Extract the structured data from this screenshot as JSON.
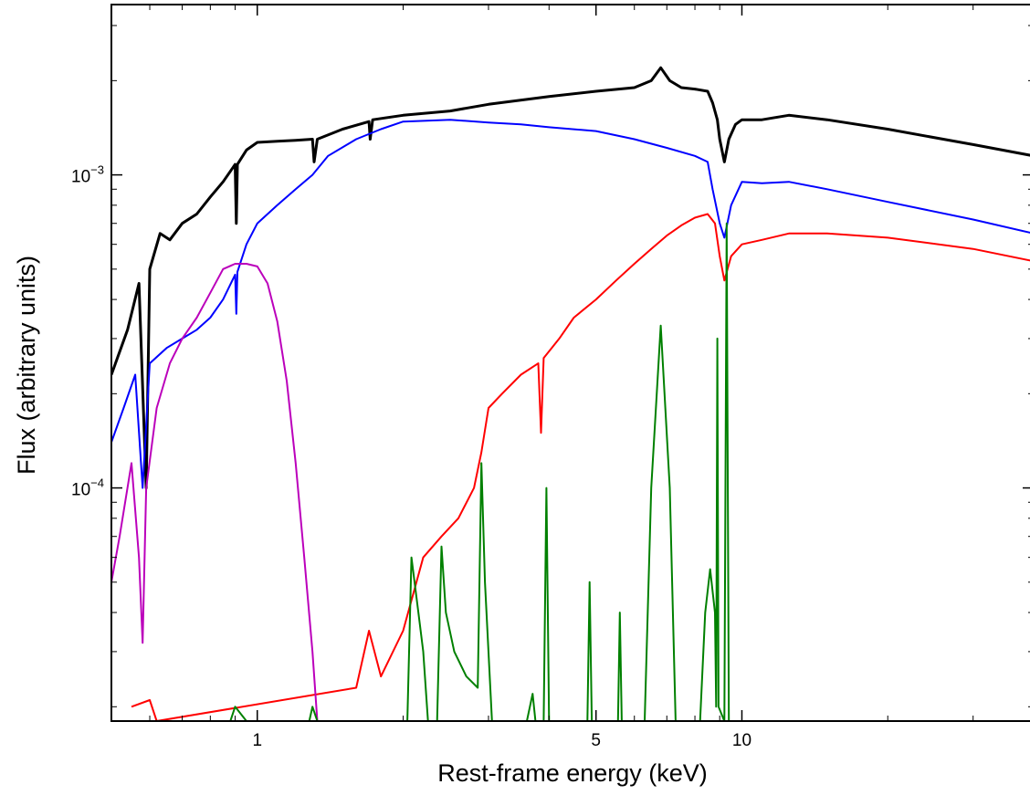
{
  "chart_data": {
    "type": "line",
    "title": "",
    "xlabel": "Rest-frame energy (keV)",
    "ylabel": "Flux (arbitrary units)",
    "xscale": "log",
    "yscale": "log",
    "xlim": [
      0.5,
      40
    ],
    "ylim": [
      1.8e-05,
      0.0035
    ],
    "grid": false,
    "legend": "none",
    "x_ticks": [
      {
        "value": 1,
        "label": "1"
      },
      {
        "value": 5,
        "label": "5"
      },
      {
        "value": 10,
        "label": "10"
      }
    ],
    "y_ticks": [
      {
        "value": 0.001,
        "base": "10",
        "exp": "−3"
      },
      {
        "value": 0.0001,
        "base": "10",
        "exp": "−4"
      }
    ],
    "series": [
      {
        "color": "#000000",
        "line_width": 3,
        "points": [
          [
            0.5,
            0.00023
          ],
          [
            0.54,
            0.00032
          ],
          [
            0.57,
            0.00045
          ],
          [
            0.59,
            0.0001
          ],
          [
            0.6,
            0.0005
          ],
          [
            0.63,
            0.00065
          ],
          [
            0.66,
            0.00062
          ],
          [
            0.7,
            0.0007
          ],
          [
            0.75,
            0.00075
          ],
          [
            0.8,
            0.00085
          ],
          [
            0.85,
            0.00095
          ],
          [
            0.9,
            0.00108
          ],
          [
            0.905,
            0.0007
          ],
          [
            0.91,
            0.00108
          ],
          [
            0.95,
            0.0012
          ],
          [
            1.0,
            0.00127
          ],
          [
            1.1,
            0.00128
          ],
          [
            1.2,
            0.00129
          ],
          [
            1.3,
            0.0013
          ],
          [
            1.31,
            0.0011
          ],
          [
            1.33,
            0.0013
          ],
          [
            1.5,
            0.0014
          ],
          [
            1.7,
            0.00148
          ],
          [
            1.71,
            0.0013
          ],
          [
            1.73,
            0.0015
          ],
          [
            2.0,
            0.00155
          ],
          [
            2.5,
            0.0016
          ],
          [
            3.0,
            0.00168
          ],
          [
            4.0,
            0.00178
          ],
          [
            5.0,
            0.00185
          ],
          [
            6.0,
            0.0019
          ],
          [
            6.5,
            0.002
          ],
          [
            6.8,
            0.0022
          ],
          [
            7.1,
            0.002
          ],
          [
            7.5,
            0.0019
          ],
          [
            8.0,
            0.00188
          ],
          [
            8.5,
            0.00185
          ],
          [
            8.7,
            0.0017
          ],
          [
            8.9,
            0.0015
          ],
          [
            9.0,
            0.0013
          ],
          [
            9.2,
            0.0011
          ],
          [
            9.4,
            0.0013
          ],
          [
            9.7,
            0.00145
          ],
          [
            10.0,
            0.0015
          ],
          [
            11.0,
            0.0015
          ],
          [
            12.5,
            0.00155
          ],
          [
            15.0,
            0.0015
          ],
          [
            20.0,
            0.0014
          ],
          [
            30.0,
            0.00125
          ],
          [
            40.0,
            0.00115
          ]
        ]
      },
      {
        "color": "#0000ff",
        "line_width": 2,
        "points": [
          [
            0.5,
            0.00014
          ],
          [
            0.53,
            0.00018
          ],
          [
            0.56,
            0.00023
          ],
          [
            0.58,
            0.0001
          ],
          [
            0.6,
            0.00025
          ],
          [
            0.65,
            0.00028
          ],
          [
            0.7,
            0.0003
          ],
          [
            0.75,
            0.00032
          ],
          [
            0.8,
            0.00035
          ],
          [
            0.85,
            0.0004
          ],
          [
            0.9,
            0.00048
          ],
          [
            0.905,
            0.00036
          ],
          [
            0.91,
            0.00049
          ],
          [
            0.95,
            0.0006
          ],
          [
            1.0,
            0.0007
          ],
          [
            1.1,
            0.0008
          ],
          [
            1.2,
            0.0009
          ],
          [
            1.3,
            0.001
          ],
          [
            1.4,
            0.00115
          ],
          [
            1.6,
            0.0013
          ],
          [
            1.8,
            0.0014
          ],
          [
            2.0,
            0.00148
          ],
          [
            2.5,
            0.0015
          ],
          [
            3.0,
            0.00147
          ],
          [
            3.5,
            0.00145
          ],
          [
            4.0,
            0.00142
          ],
          [
            5.0,
            0.00138
          ],
          [
            6.0,
            0.0013
          ],
          [
            7.0,
            0.00122
          ],
          [
            8.0,
            0.00115
          ],
          [
            8.5,
            0.0011
          ],
          [
            8.7,
            0.0009
          ],
          [
            9.0,
            0.0007
          ],
          [
            9.2,
            0.00063
          ],
          [
            9.5,
            0.0008
          ],
          [
            10.0,
            0.00095
          ],
          [
            11.0,
            0.00094
          ],
          [
            12.5,
            0.00095
          ],
          [
            15.0,
            0.0009
          ],
          [
            20.0,
            0.00082
          ],
          [
            30.0,
            0.00072
          ],
          [
            40.0,
            0.00065
          ]
        ]
      },
      {
        "color": "#ff0000",
        "line_width": 2,
        "points": [
          [
            0.55,
            2e-05
          ],
          [
            0.6,
            2.1e-05
          ],
          [
            0.62,
            1.8e-05
          ],
          [
            1.6,
            2.3e-05
          ],
          [
            1.7,
            3.5e-05
          ],
          [
            1.8,
            2.5e-05
          ],
          [
            2.0,
            3.5e-05
          ],
          [
            2.2,
            6e-05
          ],
          [
            2.4,
            7e-05
          ],
          [
            2.6,
            8e-05
          ],
          [
            2.8,
            0.0001
          ],
          [
            2.9,
            0.00013
          ],
          [
            3.0,
            0.00018
          ],
          [
            3.2,
            0.0002
          ],
          [
            3.5,
            0.00023
          ],
          [
            3.8,
            0.00025
          ],
          [
            3.85,
            0.00015
          ],
          [
            3.9,
            0.00026
          ],
          [
            4.2,
            0.0003
          ],
          [
            4.5,
            0.00035
          ],
          [
            5.0,
            0.0004
          ],
          [
            5.5,
            0.00046
          ],
          [
            6.0,
            0.00052
          ],
          [
            6.5,
            0.00058
          ],
          [
            7.0,
            0.00064
          ],
          [
            7.5,
            0.00069
          ],
          [
            8.0,
            0.00073
          ],
          [
            8.5,
            0.00075
          ],
          [
            8.8,
            0.0007
          ],
          [
            9.0,
            0.00055
          ],
          [
            9.2,
            0.00046
          ],
          [
            9.5,
            0.00055
          ],
          [
            10.0,
            0.0006
          ],
          [
            11.0,
            0.00062
          ],
          [
            12.5,
            0.00065
          ],
          [
            15.0,
            0.00065
          ],
          [
            20.0,
            0.00063
          ],
          [
            30.0,
            0.00058
          ],
          [
            40.0,
            0.00053
          ]
        ]
      },
      {
        "color": "#bb00bb",
        "line_width": 2,
        "points": [
          [
            0.5,
            5e-05
          ],
          [
            0.52,
            7e-05
          ],
          [
            0.55,
            0.00012
          ],
          [
            0.57,
            6e-05
          ],
          [
            0.58,
            3.2e-05
          ],
          [
            0.59,
            0.0001
          ],
          [
            0.62,
            0.00018
          ],
          [
            0.66,
            0.00025
          ],
          [
            0.7,
            0.0003
          ],
          [
            0.75,
            0.00035
          ],
          [
            0.8,
            0.00042
          ],
          [
            0.85,
            0.0005
          ],
          [
            0.9,
            0.00052
          ],
          [
            0.95,
            0.00052
          ],
          [
            1.0,
            0.00051
          ],
          [
            1.05,
            0.00045
          ],
          [
            1.1,
            0.00034
          ],
          [
            1.15,
            0.00022
          ],
          [
            1.2,
            0.00012
          ],
          [
            1.25,
            6e-05
          ],
          [
            1.3,
            3e-05
          ],
          [
            1.33,
            1.8e-05
          ]
        ]
      },
      {
        "color": "#008000",
        "line_width": 2,
        "points": [
          [
            0.88,
            1.8e-05
          ],
          [
            0.9,
            2e-05
          ],
          [
            0.95,
            1.8e-05
          ],
          [
            1.28,
            1.8e-05
          ],
          [
            1.3,
            2e-05
          ],
          [
            1.33,
            1.8e-05
          ],
          [
            2.04,
            1.8e-05
          ],
          [
            2.08,
            6e-05
          ],
          [
            2.15,
            4e-05
          ],
          [
            2.2,
            3e-05
          ],
          [
            2.25,
            1.8e-05
          ],
          [
            2.35,
            1.8e-05
          ],
          [
            2.4,
            6.5e-05
          ],
          [
            2.45,
            4e-05
          ],
          [
            2.55,
            3e-05
          ],
          [
            2.7,
            2.5e-05
          ],
          [
            2.85,
            2.3e-05
          ],
          [
            2.9,
            0.00012
          ],
          [
            2.95,
            5e-05
          ],
          [
            3.05,
            1.8e-05
          ],
          [
            3.6,
            1.8e-05
          ],
          [
            3.7,
            2.2e-05
          ],
          [
            3.75,
            1.8e-05
          ],
          [
            3.9,
            1.8e-05
          ],
          [
            3.95,
            0.0001
          ],
          [
            4.0,
            1.8e-05
          ],
          [
            4.8,
            1.8e-05
          ],
          [
            4.85,
            5e-05
          ],
          [
            4.9,
            1.8e-05
          ],
          [
            5.55,
            1.8e-05
          ],
          [
            5.6,
            4e-05
          ],
          [
            5.65,
            1.8e-05
          ],
          [
            6.3,
            1.8e-05
          ],
          [
            6.5,
            0.0001
          ],
          [
            6.8,
            0.00033
          ],
          [
            7.1,
            0.0001
          ],
          [
            7.3,
            1.8e-05
          ],
          [
            8.2,
            1.8e-05
          ],
          [
            8.4,
            4e-05
          ],
          [
            8.6,
            5.5e-05
          ],
          [
            8.8,
            4e-05
          ],
          [
            8.85,
            2e-05
          ],
          [
            8.9,
            0.0003
          ],
          [
            8.95,
            2e-05
          ],
          [
            9.2,
            1.8e-05
          ],
          [
            9.3,
            0.0007
          ],
          [
            9.4,
            1.8e-05
          ]
        ]
      }
    ]
  }
}
